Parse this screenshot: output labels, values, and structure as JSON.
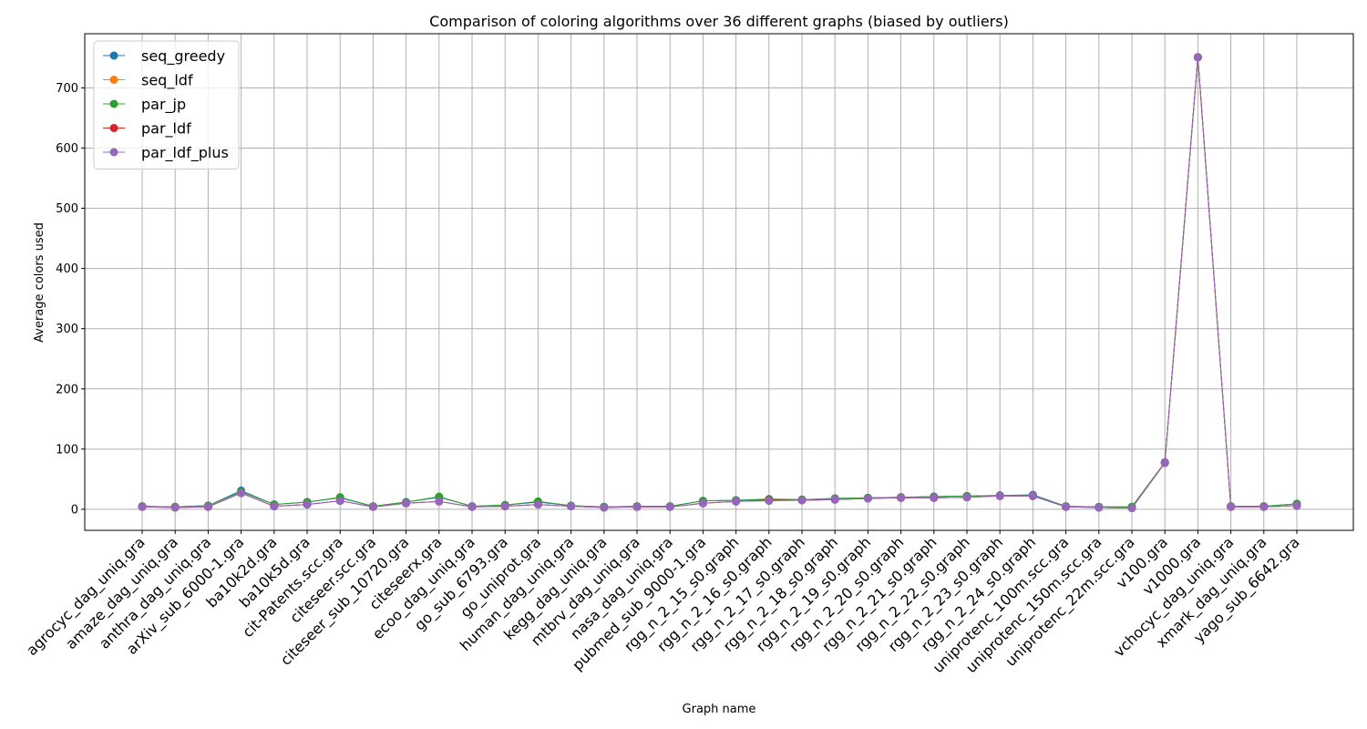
{
  "chart_data": {
    "type": "line",
    "title": "Comparison of coloring algorithms over 36 different graphs (biased by outliers)",
    "xlabel": "Graph name",
    "ylabel": "Average colors used",
    "ylim": [
      -35,
      790
    ],
    "yticks": [
      0,
      100,
      200,
      300,
      400,
      500,
      600,
      700
    ],
    "grid": true,
    "legend_position": "top-left",
    "categories": [
      "agrocyc_dag_uniq.gra",
      "amaze_dag_uniq.gra",
      "anthra_dag_uniq.gra",
      "arXiv_sub_6000-1.gra",
      "ba10k2d.gra",
      "ba10k5d.gra",
      "cit-Patents.scc.gra",
      "citeseer.scc.gra",
      "citeseer_sub_10720.gra",
      "citeseerx.gra",
      "ecoo_dag_uniq.gra",
      "go_sub_6793.gra",
      "go_uniprot.gra",
      "human_dag_uniq.gra",
      "kegg_dag_uniq.gra",
      "mtbrv_dag_uniq.gra",
      "nasa_dag_uniq.gra",
      "pubmed_sub_9000-1.gra",
      "rgg_n_2_15_s0.graph",
      "rgg_n_2_16_s0.graph",
      "rgg_n_2_17_s0.graph",
      "rgg_n_2_18_s0.graph",
      "rgg_n_2_19_s0.graph",
      "rgg_n_2_20_s0.graph",
      "rgg_n_2_21_s0.graph",
      "rgg_n_2_22_s0.graph",
      "rgg_n_2_23_s0.graph",
      "rgg_n_2_24_s0.graph",
      "uniprotenc_100m.scc.gra",
      "uniprotenc_150m.scc.gra",
      "uniprotenc_22m.scc.gra",
      "v100.gra",
      "v1000.gra",
      "vchocyc_dag_uniq.gra",
      "xmark_dag_uniq.gra",
      "yago_sub_6642.gra"
    ],
    "series": [
      {
        "name": "seq_greedy",
        "color": "#1f77b4",
        "values": [
          5,
          4,
          6,
          31,
          8,
          12,
          19,
          5,
          12,
          20,
          5,
          7,
          12,
          6,
          4,
          5,
          5,
          14,
          15,
          17,
          16,
          18,
          19,
          20,
          21,
          22,
          23,
          24,
          5,
          4,
          4,
          78,
          751,
          5,
          5,
          9
        ]
      },
      {
        "name": "seq_ldf",
        "color": "#ff7f0e",
        "values": [
          4,
          3,
          4,
          27,
          5,
          8,
          14,
          4,
          10,
          13,
          4,
          5,
          8,
          5,
          3,
          4,
          4,
          10,
          13,
          15,
          15,
          16,
          18,
          19,
          19,
          20,
          22,
          22,
          4,
          3,
          2,
          77,
          751,
          4,
          4,
          6
        ]
      },
      {
        "name": "par_jp",
        "color": "#2ca02c",
        "values": [
          5,
          4,
          6,
          29,
          8,
          12,
          20,
          5,
          12,
          21,
          5,
          7,
          13,
          6,
          4,
          5,
          5,
          14,
          15,
          16,
          16,
          18,
          19,
          20,
          21,
          22,
          23,
          23,
          5,
          4,
          4,
          78,
          751,
          5,
          5,
          9
        ]
      },
      {
        "name": "par_ldf",
        "color": "#d62728",
        "values": [
          4,
          3,
          4,
          27,
          5,
          8,
          14,
          4,
          10,
          13,
          4,
          5,
          8,
          5,
          3,
          4,
          4,
          10,
          13,
          15,
          15,
          16,
          18,
          19,
          19,
          20,
          22,
          22,
          4,
          3,
          2,
          77,
          751,
          4,
          4,
          6
        ]
      },
      {
        "name": "par_ldf_plus",
        "color": "#9467bd",
        "values": [
          4,
          3,
          4,
          27,
          5,
          8,
          14,
          4,
          10,
          13,
          4,
          5,
          8,
          5,
          3,
          4,
          4,
          10,
          13,
          14,
          15,
          16,
          18,
          19,
          19,
          20,
          22,
          22,
          4,
          3,
          2,
          77,
          751,
          4,
          4,
          6
        ]
      }
    ]
  }
}
